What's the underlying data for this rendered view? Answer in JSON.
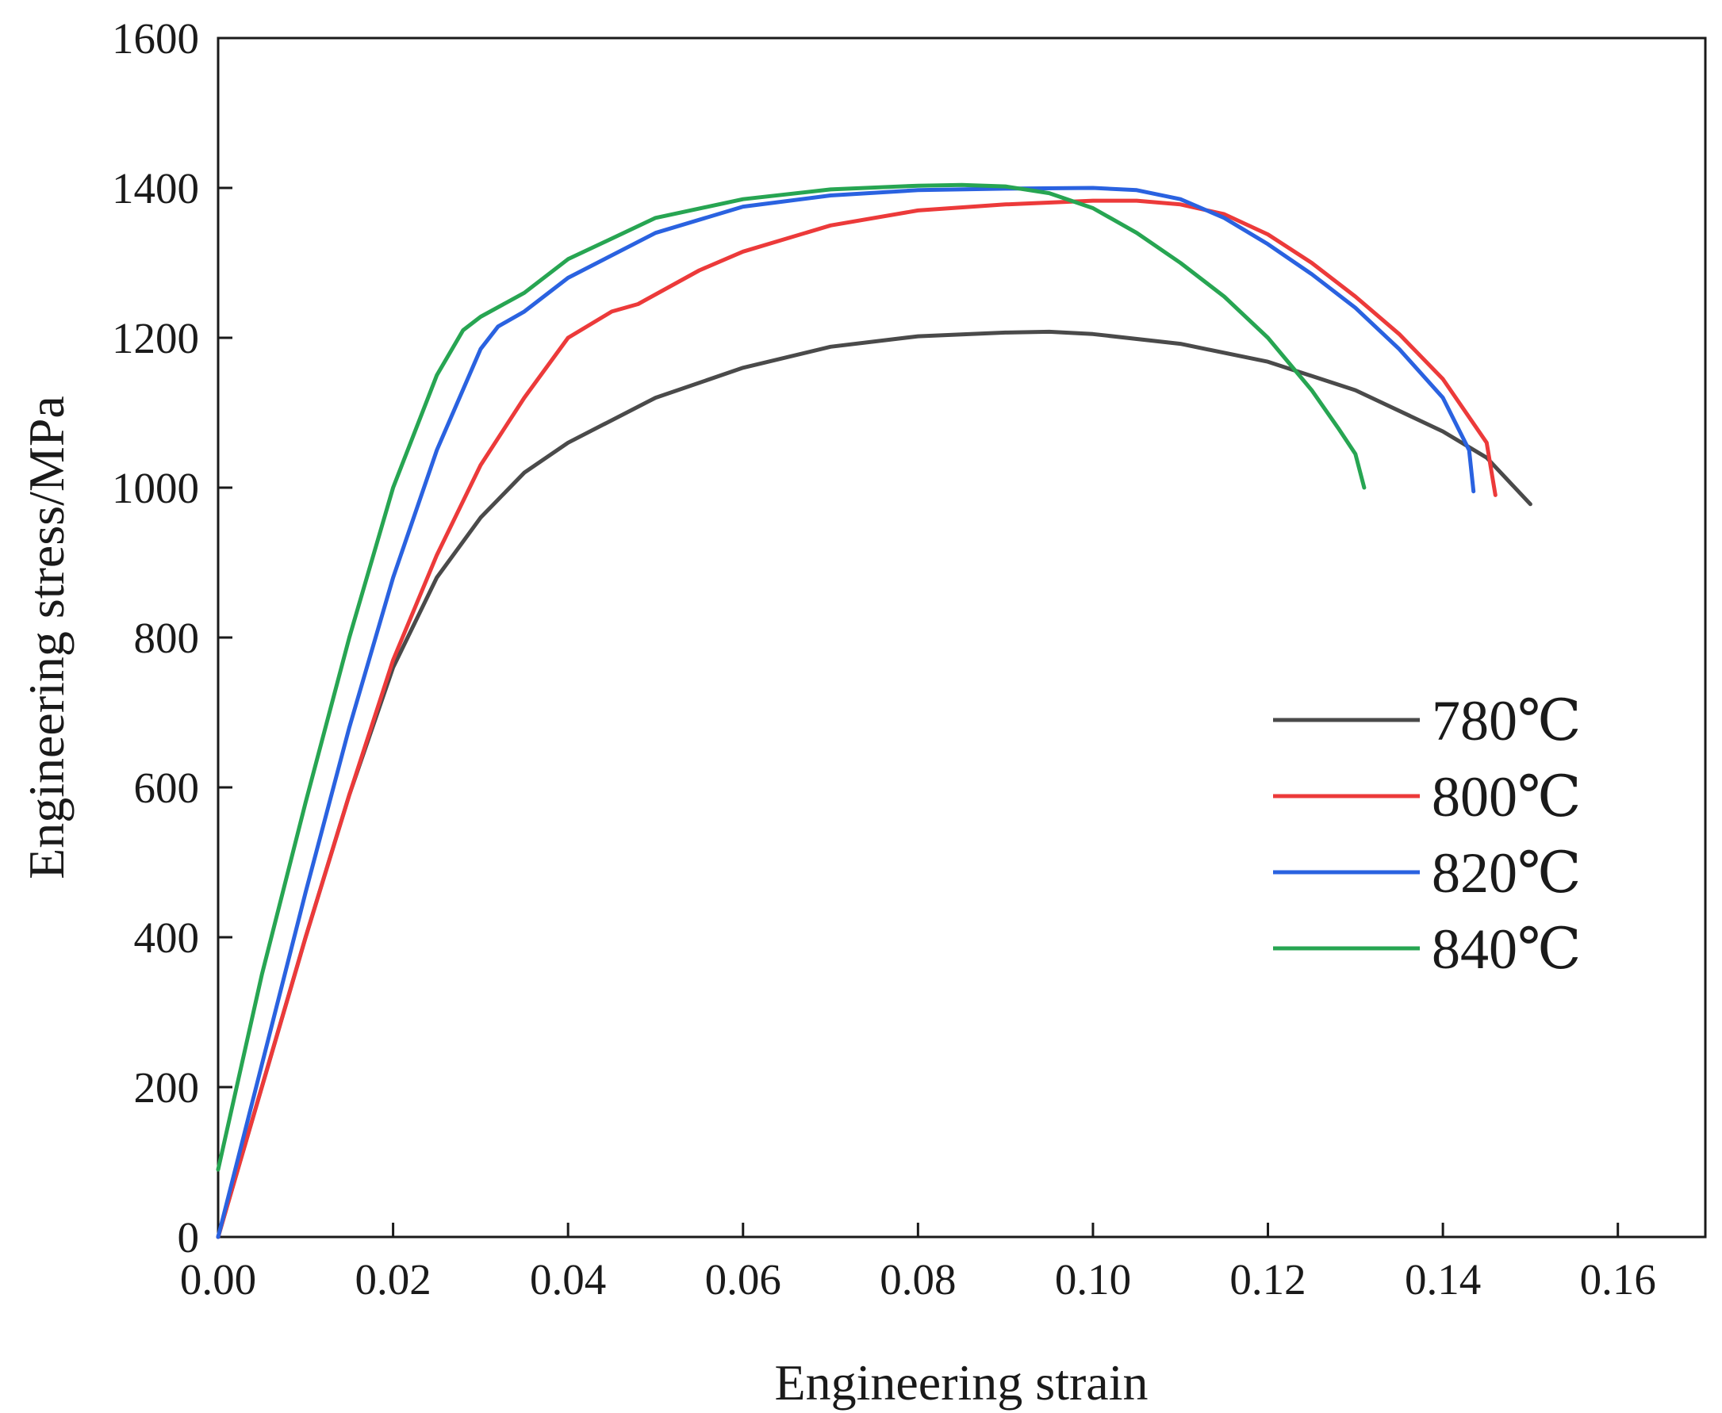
{
  "chart_data": {
    "type": "line",
    "title": "",
    "xlabel": "Engineering strain",
    "ylabel": "Engineering stress/MPa",
    "xlim": [
      0,
      0.17
    ],
    "ylim": [
      0,
      1600
    ],
    "xticks": [
      "0.00",
      "0.02",
      "0.04",
      "0.06",
      "0.08",
      "0.10",
      "0.12",
      "0.14",
      "0.16"
    ],
    "xtick_values": [
      0,
      0.02,
      0.04,
      0.06,
      0.08,
      0.1,
      0.12,
      0.14,
      0.16
    ],
    "yticks": [
      "0",
      "200",
      "400",
      "600",
      "800",
      "1000",
      "1200",
      "1400",
      "1600"
    ],
    "ytick_values": [
      0,
      200,
      400,
      600,
      800,
      1000,
      1200,
      1400,
      1600
    ],
    "grid": false,
    "legend_position": "center-right",
    "series": [
      {
        "name": "780℃",
        "color": "#4a4a4a",
        "x": [
          0,
          0.005,
          0.01,
          0.015,
          0.02,
          0.025,
          0.03,
          0.035,
          0.04,
          0.05,
          0.06,
          0.07,
          0.08,
          0.09,
          0.095,
          0.1,
          0.11,
          0.12,
          0.13,
          0.14,
          0.145,
          0.15
        ],
        "y": [
          0,
          200,
          400,
          590,
          760,
          880,
          960,
          1020,
          1060,
          1120,
          1160,
          1188,
          1202,
          1207,
          1208,
          1205,
          1192,
          1168,
          1130,
          1075,
          1040,
          978
        ]
      },
      {
        "name": "800℃",
        "color": "#ec3a3a",
        "x": [
          0,
          0.005,
          0.01,
          0.015,
          0.02,
          0.025,
          0.03,
          0.035,
          0.04,
          0.045,
          0.048,
          0.055,
          0.06,
          0.07,
          0.08,
          0.09,
          0.1,
          0.105,
          0.11,
          0.115,
          0.12,
          0.125,
          0.13,
          0.135,
          0.14,
          0.145,
          0.146
        ],
        "y": [
          0,
          200,
          400,
          590,
          770,
          910,
          1030,
          1120,
          1200,
          1235,
          1245,
          1290,
          1315,
          1350,
          1370,
          1378,
          1383,
          1383,
          1378,
          1365,
          1338,
          1300,
          1255,
          1205,
          1145,
          1060,
          990
        ]
      },
      {
        "name": "820℃",
        "color": "#2a62e0",
        "x": [
          0,
          0.005,
          0.01,
          0.015,
          0.02,
          0.025,
          0.03,
          0.032,
          0.035,
          0.04,
          0.05,
          0.06,
          0.07,
          0.08,
          0.09,
          0.1,
          0.105,
          0.11,
          0.115,
          0.12,
          0.125,
          0.13,
          0.135,
          0.14,
          0.143,
          0.1435
        ],
        "y": [
          0,
          230,
          460,
          680,
          880,
          1050,
          1185,
          1215,
          1235,
          1280,
          1340,
          1375,
          1390,
          1397,
          1399,
          1400,
          1397,
          1385,
          1360,
          1325,
          1285,
          1240,
          1185,
          1120,
          1050,
          995
        ]
      },
      {
        "name": "840℃",
        "color": "#27a552",
        "x": [
          0,
          0.005,
          0.01,
          0.015,
          0.02,
          0.025,
          0.028,
          0.03,
          0.035,
          0.04,
          0.05,
          0.06,
          0.07,
          0.08,
          0.085,
          0.09,
          0.095,
          0.1,
          0.105,
          0.11,
          0.115,
          0.12,
          0.125,
          0.128,
          0.13,
          0.131
        ],
        "y": [
          90,
          350,
          580,
          800,
          1000,
          1150,
          1210,
          1228,
          1260,
          1305,
          1360,
          1385,
          1398,
          1403,
          1404,
          1402,
          1393,
          1373,
          1340,
          1300,
          1255,
          1200,
          1130,
          1080,
          1045,
          1000
        ]
      }
    ]
  }
}
